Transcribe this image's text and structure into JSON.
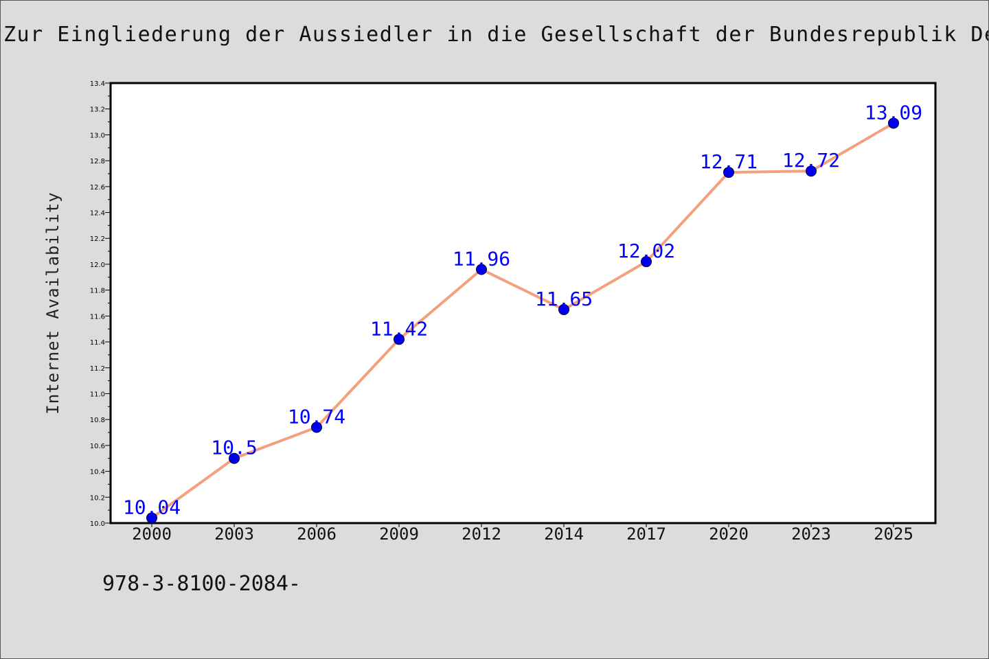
{
  "title": "Zur Eingliederung der Aussiedler in die Gesellschaft der Bundesrepublik Deutschland",
  "footer": "978-3-8100-2084-",
  "chart_data": {
    "type": "line",
    "title": "Zur Eingliederung der Aussiedler in die Gesellschaft der Bundesrepublik Deutschland",
    "xlabel": "",
    "ylabel": "Internet Availability",
    "categories": [
      "2000",
      "2003",
      "2006",
      "2009",
      "2012",
      "2014",
      "2017",
      "2020",
      "2023",
      "2025"
    ],
    "series": [
      {
        "values": [
          10.04,
          10.5,
          10.74,
          11.42,
          11.96,
          11.65,
          12.02,
          12.71,
          12.72,
          13.09
        ]
      }
    ],
    "data_labels": [
      "10.04",
      "10.5",
      "10.74",
      "11.42",
      "11.96",
      "11.65",
      "12.02",
      "12.71",
      "12.72",
      "13.09"
    ],
    "ylim": [
      10.0,
      13.4
    ],
    "yticks": [
      "10.0",
      "10.2",
      "10.4",
      "10.6",
      "10.8",
      "11.0",
      "11.2",
      "11.4",
      "11.6",
      "11.8",
      "12.0",
      "12.2",
      "12.4",
      "12.6",
      "12.8",
      "13.0",
      "13.2",
      "13.4"
    ],
    "grid": false,
    "legend": "none",
    "colors": {
      "line": "#f4a07f",
      "marker": "#0000ee",
      "label": "#0000ff",
      "plot_bg": "#ffffff",
      "page_bg": "#dcdcdc"
    }
  }
}
